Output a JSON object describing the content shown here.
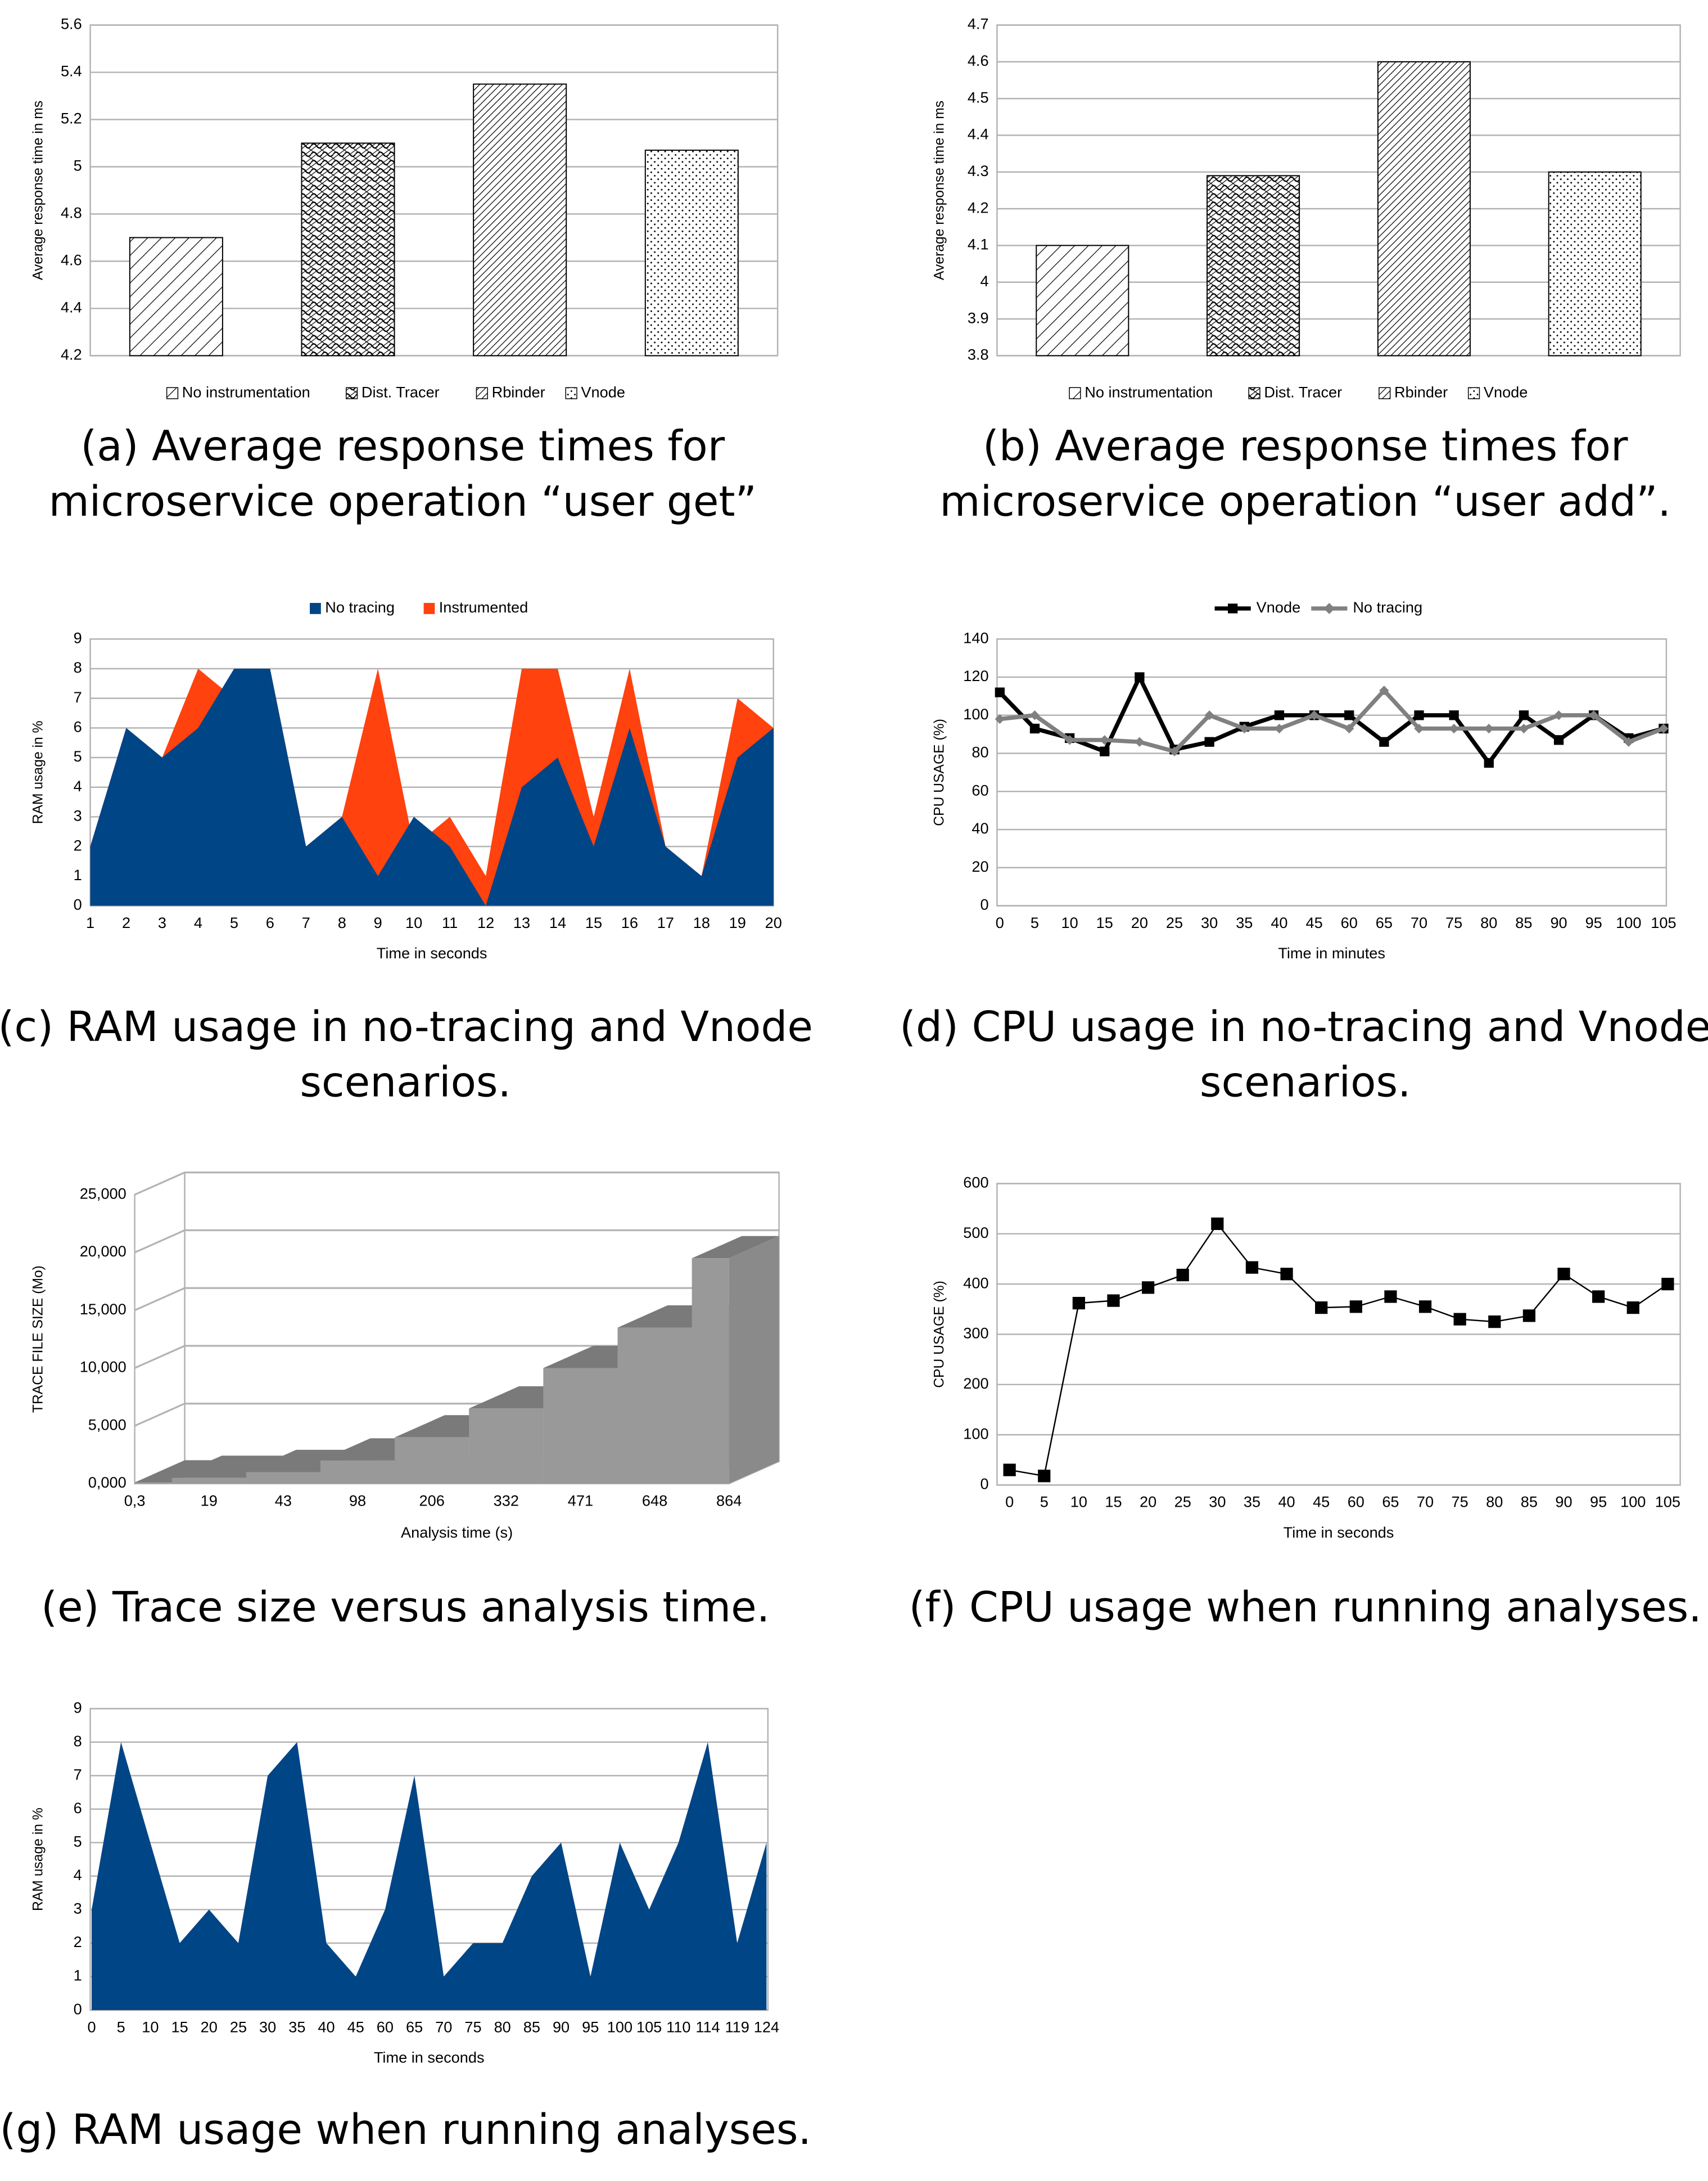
{
  "chart_data": [
    {
      "type": "bar",
      "caption": [
        "(a) Average response times for",
        "microservice operation “user get”"
      ],
      "ylabel": "Average response time in ms",
      "categories": [
        "No instrumentation",
        "Dist. Tracer",
        "Rbinder",
        "Vnode"
      ],
      "values": [
        4.7,
        5.1,
        5.35,
        5.07
      ],
      "patterns": [
        "diagonal",
        "scales",
        "dense-diagonal",
        "dots"
      ],
      "ylim": [
        4.2,
        5.6
      ],
      "yticks": [
        4.2,
        4.4,
        4.6,
        4.8,
        5,
        5.2,
        5.4,
        5.6
      ],
      "grid": true,
      "legend": "bottom"
    },
    {
      "type": "bar",
      "caption": [
        "(b) Average response times for",
        "microservice operation “user add”."
      ],
      "ylabel": "Average response time in ms",
      "categories": [
        "No instrumentation",
        "Dist. Tracer",
        "Rbinder",
        "Vnode"
      ],
      "values": [
        4.1,
        4.29,
        4.6,
        4.3
      ],
      "patterns": [
        "diagonal",
        "scales",
        "dense-diagonal",
        "dots"
      ],
      "ylim": [
        3.8,
        4.7
      ],
      "yticks": [
        3.8,
        3.9,
        4,
        4.1,
        4.2,
        4.3,
        4.4,
        4.5,
        4.6,
        4.7
      ],
      "grid": true,
      "legend": "bottom"
    },
    {
      "type": "area",
      "caption": [
        "(c) RAM usage in no-tracing and Vnode",
        "scenarios."
      ],
      "xlabel": "Time in seconds",
      "ylabel": "RAM usage in %",
      "categories": [
        1,
        2,
        3,
        4,
        5,
        6,
        7,
        8,
        9,
        10,
        11,
        12,
        13,
        14,
        15,
        16,
        17,
        18,
        19,
        20
      ],
      "series": [
        {
          "name": "No tracing",
          "color": "#004586",
          "values": [
            2,
            6,
            5,
            6,
            8,
            8,
            2,
            3,
            1,
            3,
            2,
            0,
            4,
            5,
            2,
            6,
            2,
            1,
            5,
            6
          ]
        },
        {
          "name": "Instrumented",
          "color": "#ff420e",
          "values": [
            2,
            6,
            5,
            8,
            7,
            8,
            2,
            3,
            8,
            2,
            3,
            1,
            8,
            8,
            3,
            8,
            2,
            1,
            7,
            6
          ]
        }
      ],
      "ylim": [
        0,
        9
      ],
      "yticks": [
        0,
        1,
        2,
        3,
        4,
        5,
        6,
        7,
        8,
        9
      ],
      "grid": true,
      "legend": "top"
    },
    {
      "type": "line",
      "caption": [
        "(d) CPU usage in no-tracing and Vnode",
        "scenarios."
      ],
      "xlabel": "Time in minutes",
      "ylabel": "CPU USAGE (%)",
      "categories": [
        0,
        5,
        10,
        15,
        20,
        25,
        30,
        35,
        40,
        45,
        60,
        65,
        70,
        75,
        80,
        85,
        90,
        95,
        100,
        105
      ],
      "series": [
        {
          "name": "Vnode",
          "color": "#000000",
          "marker": "square",
          "values": [
            112,
            93,
            88,
            81,
            120,
            82,
            86,
            94,
            100,
            100,
            100,
            86,
            100,
            100,
            75,
            100,
            87,
            100,
            88,
            93
          ]
        },
        {
          "name": "No tracing",
          "color": "#808080",
          "marker": "diamond",
          "values": [
            98,
            100,
            87,
            87,
            86,
            81,
            100,
            93,
            93,
            100,
            93,
            113,
            93,
            93,
            93,
            93,
            100,
            100,
            86,
            93
          ]
        }
      ],
      "ylim": [
        0,
        140
      ],
      "yticks": [
        0,
        20,
        40,
        60,
        80,
        100,
        120,
        140
      ],
      "grid": true,
      "legend": "top"
    },
    {
      "type": "area3d",
      "caption": [
        "(e) Trace size versus analysis time."
      ],
      "xlabel": "Analysis time (s)",
      "ylabel": "TRACE FILE SIZE (Mo)",
      "categories": [
        "0,3",
        "19",
        "43",
        "98",
        "206",
        "332",
        "471",
        "648",
        "864"
      ],
      "values": [
        100,
        500,
        1000,
        2000,
        4000,
        6500,
        10000,
        13500,
        19500
      ],
      "color": "#999999",
      "ylim": [
        0,
        25000
      ],
      "yticks": [
        {
          "value": 0,
          "label": "0,000"
        },
        {
          "value": 5000,
          "label": "5,000"
        },
        {
          "value": 10000,
          "label": "10,000"
        },
        {
          "value": 15000,
          "label": "15,000"
        },
        {
          "value": 20000,
          "label": "20,000"
        },
        {
          "value": 25000,
          "label": "25,000"
        }
      ],
      "grid": true
    },
    {
      "type": "line",
      "caption": [
        "(f) CPU usage when running analyses."
      ],
      "xlabel": "Time in seconds",
      "ylabel": "CPU USAGE (%)",
      "categories": [
        0,
        5,
        10,
        15,
        20,
        25,
        30,
        35,
        40,
        45,
        60,
        65,
        70,
        75,
        80,
        85,
        90,
        95,
        100,
        105
      ],
      "series": [
        {
          "color": "#000000",
          "marker": "square",
          "values": [
            30,
            18,
            362,
            367,
            393,
            418,
            520,
            433,
            420,
            353,
            355,
            375,
            355,
            330,
            325,
            337,
            420,
            375,
            353,
            400
          ]
        }
      ],
      "ylim": [
        0,
        600
      ],
      "yticks": [
        0,
        100,
        200,
        300,
        400,
        500,
        600
      ],
      "grid": true
    },
    {
      "type": "area",
      "caption": [
        "(g) RAM usage when running analyses."
      ],
      "xlabel": "Time in seconds",
      "ylabel": "RAM usage in %",
      "categories": [
        0,
        5,
        10,
        15,
        20,
        25,
        30,
        35,
        40,
        45,
        60,
        65,
        70,
        75,
        80,
        85,
        90,
        95,
        100,
        105,
        110,
        114,
        119,
        124
      ],
      "series": [
        {
          "color": "#004586",
          "values": [
            3,
            8,
            5,
            2,
            3,
            2,
            7,
            8,
            2,
            1,
            3,
            7,
            1,
            2,
            2,
            4,
            5,
            1,
            5,
            3,
            5,
            8,
            2,
            5
          ]
        }
      ],
      "ylim": [
        0,
        9
      ],
      "yticks": [
        0,
        1,
        2,
        3,
        4,
        5,
        6,
        7,
        8,
        9
      ],
      "grid": true
    }
  ]
}
